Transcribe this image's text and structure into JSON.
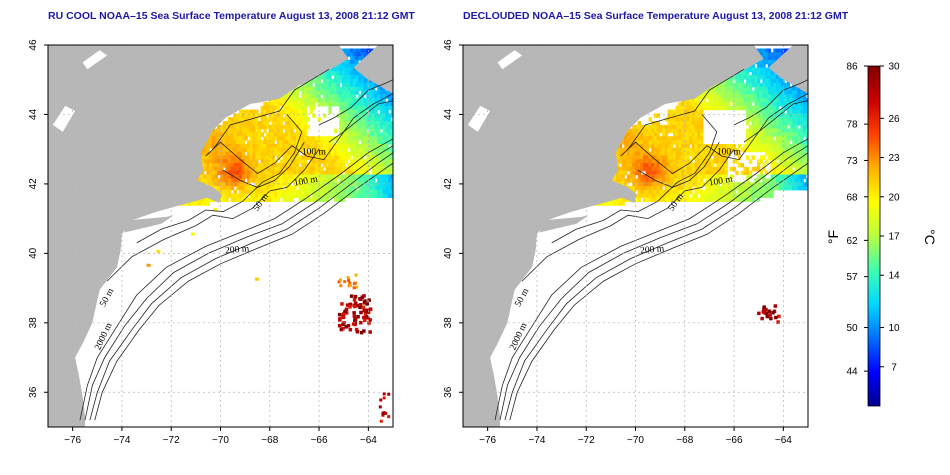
{
  "panels": [
    {
      "title": "RU COOL NOAA–15 Sea Surface Temperature August 13, 2008 21:12 GMT",
      "variant": "cloudy"
    },
    {
      "title": "DECLOUDED NOAA–15 Sea Surface Temperature August 13, 2008 21:12 GMT",
      "variant": "declouded"
    }
  ],
  "axes": {
    "lon_ticks": [
      "−76",
      "−74",
      "−72",
      "−70",
      "−68",
      "−66",
      "−64"
    ],
    "lat_ticks": [
      "36",
      "38",
      "40",
      "42",
      "44",
      "46"
    ],
    "lon_range": [
      -77,
      -63
    ],
    "lat_range": [
      35,
      46
    ]
  },
  "contour_labels": [
    "100 m",
    "100 m",
    "50 m",
    "200 m",
    "50 m",
    "2000 m"
  ],
  "colorbar": {
    "fahrenheit_ticks": [
      "86",
      "78",
      "73",
      "68",
      "62",
      "57",
      "50",
      "44"
    ],
    "celsius_ticks": [
      "30",
      "26",
      "23",
      "20",
      "17",
      "14",
      "10",
      "7"
    ],
    "fahrenheit_unit": "°F",
    "celsius_unit": "°C",
    "range_c": [
      4,
      30
    ],
    "colors": [
      "#00008f",
      "#0000ff",
      "#0070ff",
      "#00d8ff",
      "#40ffb0",
      "#b8ff40",
      "#ffff00",
      "#ffb000",
      "#ff4000",
      "#c80000",
      "#800000"
    ]
  },
  "legend_colors": {
    "land": "#b7b7b7",
    "water_no_data": "#ffffff",
    "grid": "#b0b0b0"
  }
}
